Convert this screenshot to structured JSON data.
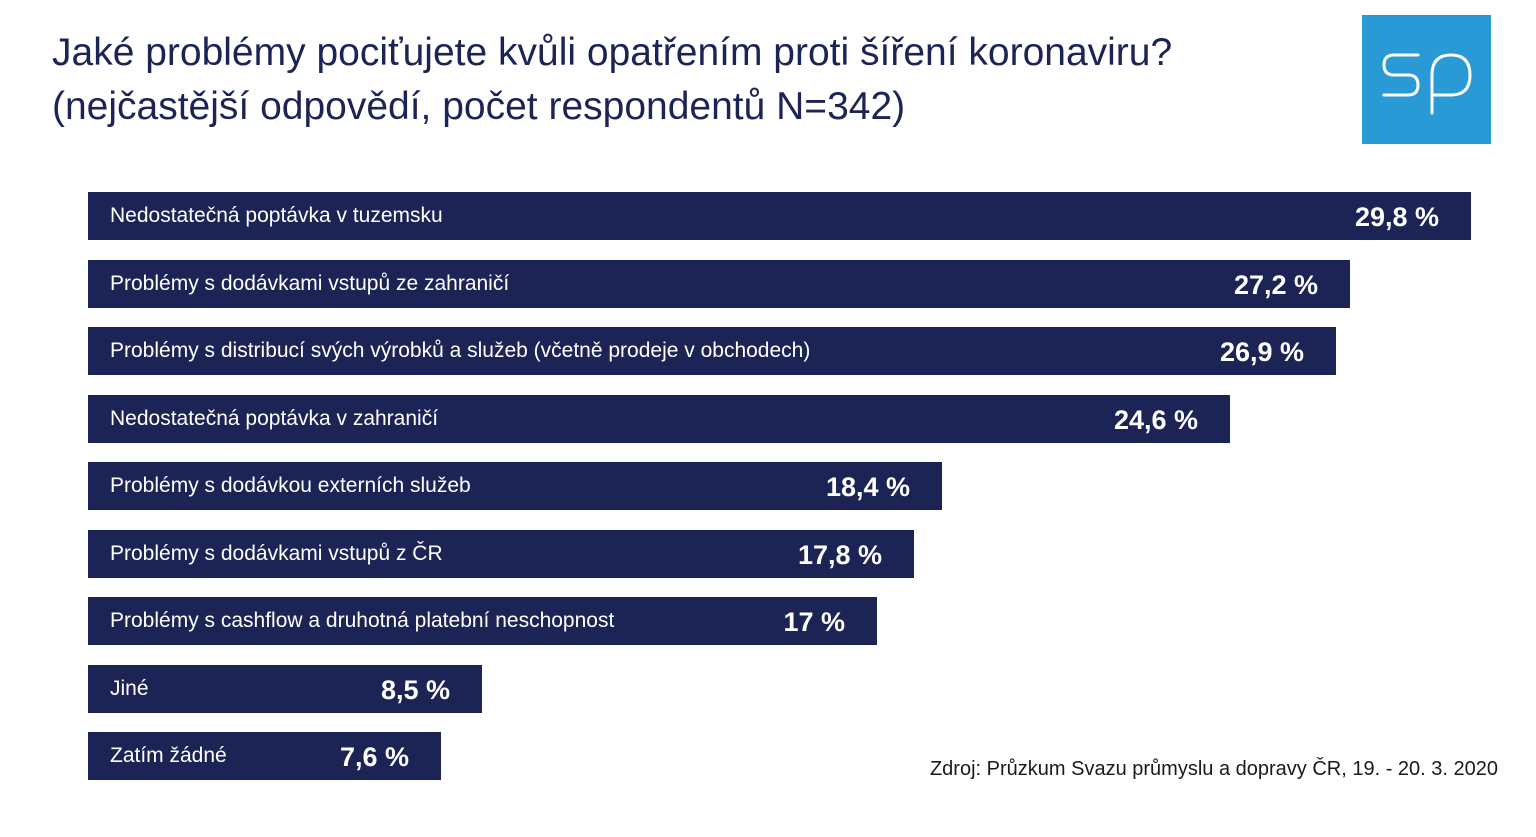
{
  "title": {
    "line1": "Jaké problémy pociťujete kvůli opatřením proti šíření koronaviru?",
    "line2": "(nejčastější odpovědí, počet respondentů N=342)"
  },
  "logo": {
    "icon": "sp-logo",
    "color": "#2a9ad7"
  },
  "colors": {
    "bar": "#1c2456",
    "title": "#1c2456",
    "bar_text": "#ffffff"
  },
  "chart_data": {
    "type": "bar",
    "orientation": "horizontal",
    "categories": [
      "Nedostatečná poptávka v tuzemsku",
      "Problémy s dodávkami vstupů ze zahraničí",
      "Problémy s distribucí svých výrobků a služeb (včetně prodeje v obchodech)",
      "Nedostatečná poptávka v zahraničí",
      "Problémy s dodávkou externích služeb",
      "Problémy s dodávkami vstupů z ČR",
      "Problémy s cashflow a druhotná platební neschopnost",
      "Jiné",
      "Zatím žádné"
    ],
    "values": [
      29.8,
      27.2,
      26.9,
      24.6,
      18.4,
      17.8,
      17,
      8.5,
      7.6
    ],
    "value_labels": [
      "29,8 %",
      "27,2 %",
      "26,9 %",
      "24,6 %",
      "18,4 %",
      "17,8 %",
      "17 %",
      "8,5 %",
      "7,6 %"
    ],
    "unit": "%",
    "grid": false,
    "legend": "none"
  },
  "source": "Zdroj: Průzkum Svazu průmyslu a dopravy ČR, 19. - 20. 3. 2020"
}
